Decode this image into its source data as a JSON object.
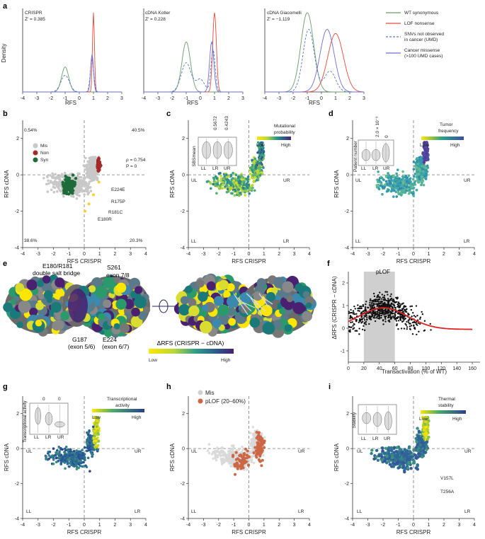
{
  "colors": {
    "wt": "#6b9b6b",
    "lof": "#e04a3a",
    "snv": "#5577cc",
    "missense": "#6c6cd6",
    "mis": "#c8c8c8",
    "non": "#a52a2a",
    "syn": "#1f6b3a",
    "plof": "#cc6644",
    "gradient": [
      "#ffe600",
      "#b8d83a",
      "#2f9e8a",
      "#2a5a8a",
      "#4a2070"
    ]
  },
  "panel_a": {
    "label": "a",
    "ylabel": "Density",
    "xlabel": "RFS",
    "xticks": [
      "-4",
      "-3",
      "-2",
      "-1",
      "0",
      "1",
      "2",
      "3"
    ],
    "legend": [
      {
        "text": "WT synonymous",
        "key": "wt",
        "dash": false
      },
      {
        "text": "LOF nonsense",
        "key": "lof",
        "dash": false
      },
      {
        "text": "SNVs not observed",
        "key": "snv",
        "dash": true,
        "line2": "in cancer (UMD)"
      },
      {
        "text": "Cancer missense",
        "key": "missense",
        "dash": false,
        "line2": "(>100 UMD cases)"
      }
    ],
    "subplots": [
      {
        "title": "CRISPR",
        "z": "Z' = 0.385"
      },
      {
        "title": "cDNA Kotler",
        "z": "Z' = 0.228"
      },
      {
        "title": "cDNA Giacomelli",
        "z": "Z' = −1.119"
      }
    ]
  },
  "axes": {
    "xlabel_crispr": "RFS CRISPR",
    "ylabel_cdna": "RFS cDNA",
    "xticks": [
      "-4",
      "-3",
      "-2",
      "-1",
      "0",
      "1",
      "2",
      "3",
      "4"
    ],
    "yticks": [
      "2",
      "0",
      "-2",
      "-4"
    ]
  },
  "panel_b": {
    "label": "b",
    "pct_ul": "0.54%",
    "pct_ur": "40.5%",
    "pct_ll": "38.6%",
    "pct_lr": "20.3%",
    "rho": "ρ = 0.754",
    "p": "P = 0",
    "legend": [
      {
        "text": "Mis",
        "key": "mis"
      },
      {
        "text": "Non",
        "key": "non"
      },
      {
        "text": "Syn",
        "key": "syn"
      }
    ],
    "annotations": [
      "E224E",
      "R175P",
      "R181C",
      "E180R"
    ]
  },
  "panel_c": {
    "label": "c",
    "title": "Mutational",
    "title2": "probability",
    "low": "Low",
    "high": "High",
    "ul": "UL",
    "ur": "UR",
    "ll": "LL",
    "lr": "LR",
    "inset_ylabel": "SBSmean",
    "inset_cats": [
      "LL",
      "LR",
      "UR"
    ],
    "pvals": [
      "0.5672",
      "0.4243"
    ]
  },
  "panel_d": {
    "label": "d",
    "title": "Tumor",
    "title2": "frequency",
    "low": "Low",
    "high": "High",
    "ul": "UL",
    "ur": "UR",
    "ll": "LL",
    "lr": "LR",
    "inset_ylabel": "Patient number",
    "inset_cats": [
      "LL",
      "LR",
      "UR"
    ],
    "pvals": [
      "2.0 × 10⁻³",
      "0"
    ]
  },
  "panel_e": {
    "label": "e",
    "ann1": "E180/R181",
    "ann1b": "double salt bridge",
    "ann2": "S261",
    "ann2b": "exon 7/8",
    "ann3": "G187",
    "ann3b": "(exon 5/6)",
    "ann4": "E224",
    "ann4b": "(exon 6/7)",
    "cbar": "ΔRFS (CRISPR − cDNA)",
    "low": "Low",
    "high": "High"
  },
  "panel_f": {
    "label": "f",
    "band": "pLOF",
    "ylabel": "ΔRFS (CRISPR − cDNA)",
    "xlabel": "Transactivation (% of WT)",
    "xticks": [
      "0",
      "20",
      "40",
      "60",
      "80",
      "100",
      "120",
      "140",
      "160"
    ],
    "yticks": [
      "2",
      "1",
      "0",
      "-1"
    ]
  },
  "panel_g": {
    "label": "g",
    "title": "Transcriptional",
    "title2": "activity",
    "low": "Low",
    "high": "High",
    "ul": "UL",
    "ur": "UR",
    "ll": "LL",
    "lr": "LR",
    "inset_ylabel": "Transcriptional activity",
    "inset_cats": [
      "LL",
      "LR",
      "UR"
    ],
    "pvals": [
      "0",
      "0"
    ]
  },
  "panel_h": {
    "label": "h",
    "legend": [
      {
        "text": "Mis",
        "key": "mis"
      },
      {
        "text": "pLOF (20–60%)",
        "key": "plof"
      }
    ],
    "ul": "UL",
    "ur": "UR",
    "ll": "LL",
    "lr": "LR"
  },
  "panel_i": {
    "label": "i",
    "title": "Thermal",
    "title2": "stability",
    "low": "Low",
    "high": "High",
    "ul": "UL",
    "ur": "UR",
    "ll": "LL",
    "lr": "LR",
    "inset_ylabel": "Stability",
    "inset_cats": [
      "LL",
      "LR",
      "UR"
    ],
    "annotations": [
      "V157L",
      "T256A"
    ]
  }
}
